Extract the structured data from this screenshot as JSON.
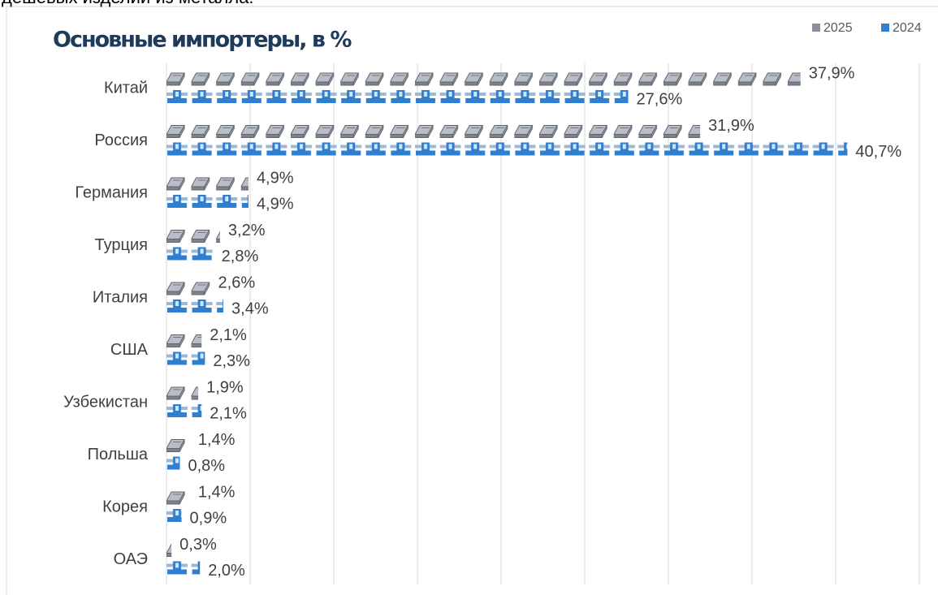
{
  "page_text": "дешевых изделий из металла.",
  "chart_data": {
    "type": "pictograph_bar",
    "title": "Основные импортеры, в %",
    "categories": [
      "Китай",
      "Россия",
      "Германия",
      "Турция",
      "Италия",
      "США",
      "Узбекистан",
      "Польша",
      "Корея",
      "ОАЭ"
    ],
    "series": [
      {
        "name": "2025",
        "color": "#8a9099",
        "values": [
          37.9,
          31.9,
          4.9,
          3.2,
          2.6,
          2.1,
          1.9,
          1.4,
          1.4,
          0.3
        ],
        "value_labels": [
          "37,9%",
          "31,9%",
          "4,9%",
          "3,2%",
          "2,6%",
          "2,1%",
          "1,9%",
          "1,4%",
          "1,4%",
          "0,3%"
        ]
      },
      {
        "name": "2024",
        "color": "#2f7fd1",
        "values": [
          27.6,
          40.7,
          4.9,
          2.8,
          3.4,
          2.3,
          2.1,
          0.8,
          0.9,
          2.0
        ],
        "value_labels": [
          "27,6%",
          "40,7%",
          "4,9%",
          "2,8%",
          "3,4%",
          "2,3%",
          "2,1%",
          "0,8%",
          "0,9%",
          "2,0%"
        ]
      }
    ],
    "xlim": [
      0,
      45
    ],
    "xticks": [
      0,
      5,
      10,
      15,
      20,
      25,
      30,
      35,
      40,
      45
    ],
    "grid": true,
    "legend": "top-right"
  }
}
